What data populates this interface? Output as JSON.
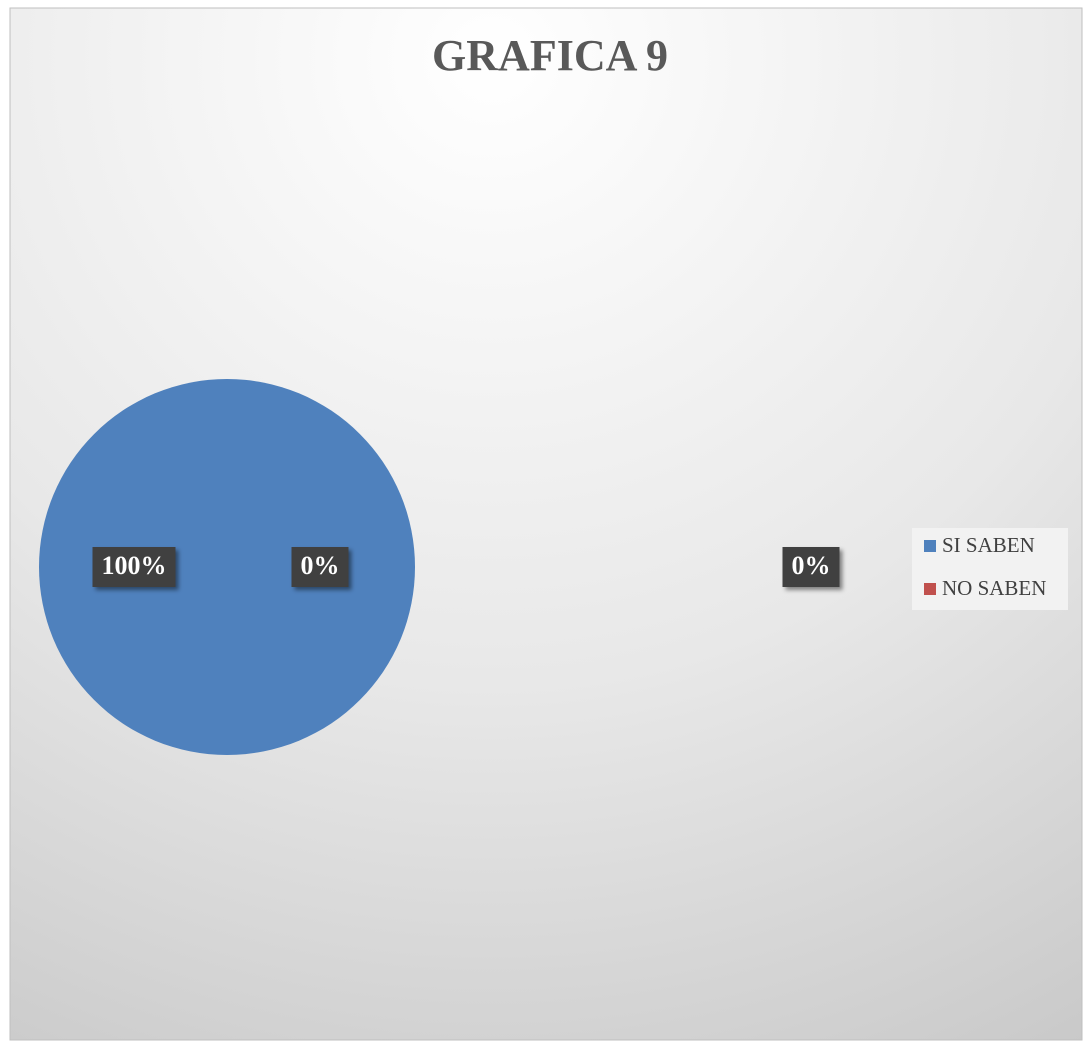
{
  "chart_data": {
    "type": "pie",
    "title": "GRAFICA 9",
    "categories": [
      "SI SABEN",
      "NO SABEN",
      null
    ],
    "values": [
      100,
      0,
      0
    ],
    "value_labels": [
      "100%",
      "0%",
      "0%"
    ],
    "colors": [
      "#4f81bd",
      "#c0504d"
    ],
    "legend": "right"
  }
}
